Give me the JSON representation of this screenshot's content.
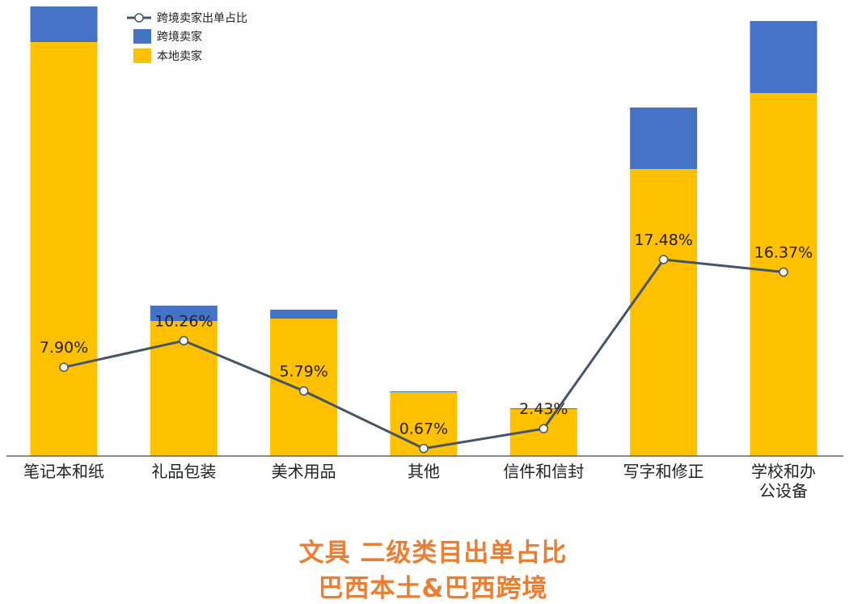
{
  "chart_data": {
    "type": "bar",
    "stacked": true,
    "categories": [
      "笔记本和纸",
      "礼品包装",
      "美术用品",
      "其他",
      "信件和信封",
      "写字和修正",
      "学校和办\n公设备"
    ],
    "series": [
      {
        "name": "本地卖家",
        "kind": "bar",
        "color": "#FFC000",
        "values": [
          512,
          167,
          170,
          79,
          58,
          355,
          449
        ]
      },
      {
        "name": "跨境卖家",
        "kind": "bar",
        "color": "#4472C4",
        "values": [
          44,
          19,
          11,
          1,
          1,
          76,
          89
        ]
      },
      {
        "name": "跨境卖家出单占比",
        "kind": "line",
        "color": "#44546A",
        "values": [
          7.9,
          10.26,
          5.79,
          0.67,
          2.43,
          17.48,
          16.37
        ],
        "labels": [
          "7.90%",
          "10.26%",
          "5.79%",
          "0.67%",
          "2.43%",
          "17.48%",
          "16.37%"
        ]
      }
    ],
    "ylim": [
      0,
      556
    ],
    "line_ylim": [
      0,
      40
    ],
    "grid": false,
    "legend": "top-left",
    "title": "文具 二级类目出单占比",
    "subtitle": "巴西本土&巴西跨境"
  }
}
